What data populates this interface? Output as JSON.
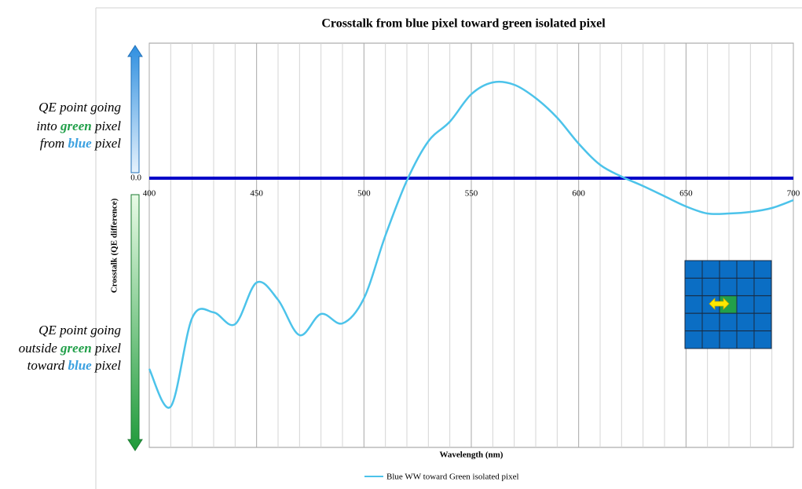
{
  "chart_data": {
    "type": "line",
    "title": "Crosstalk from blue pixel toward green isolated pixel",
    "x_label": "Wavelength (nm)",
    "y_label": "Crosstalk (QE difference)",
    "x": [
      400,
      410,
      420,
      430,
      440,
      450,
      460,
      470,
      480,
      490,
      500,
      510,
      520,
      530,
      540,
      550,
      560,
      570,
      580,
      590,
      600,
      610,
      620,
      630,
      640,
      650,
      660,
      670,
      680,
      690,
      700
    ],
    "series": [
      {
        "name": "Blue WW toward Green isolated pixel",
        "color": "#4cc3ea",
        "values": [
          -2.43,
          -2.91,
          -1.78,
          -1.71,
          -1.86,
          -1.33,
          -1.55,
          -2.0,
          -1.73,
          -1.85,
          -1.53,
          -0.73,
          -0.03,
          0.47,
          0.72,
          1.07,
          1.22,
          1.19,
          1.02,
          0.77,
          0.44,
          0.17,
          0.02,
          -0.1,
          -0.23,
          -0.36,
          -0.45,
          -0.45,
          -0.43,
          -0.38,
          -0.28
        ]
      }
    ],
    "xlim": [
      400,
      700
    ],
    "xticks": [
      400,
      450,
      500,
      550,
      600,
      650,
      700
    ],
    "xminor": [
      410,
      420,
      430,
      440,
      460,
      470,
      480,
      490,
      510,
      520,
      530,
      540,
      560,
      570,
      580,
      590,
      610,
      620,
      630,
      640,
      660,
      670,
      680,
      690
    ],
    "ylim": [
      -3.43,
      1.72
    ],
    "yticks": [
      {
        "value": 0,
        "label": "0.0"
      }
    ],
    "zero_line_color": "#0000c8",
    "grid": true,
    "legend": "bottom",
    "annotations": {
      "top": [
        "QE point going",
        [
          "into ",
          "green",
          " pixel"
        ],
        [
          "from ",
          "blue",
          " pixel"
        ]
      ],
      "bottom": [
        "QE point going",
        [
          "outside ",
          "green",
          " pixel"
        ],
        [
          "toward ",
          "blue",
          " pixel"
        ]
      ]
    }
  }
}
